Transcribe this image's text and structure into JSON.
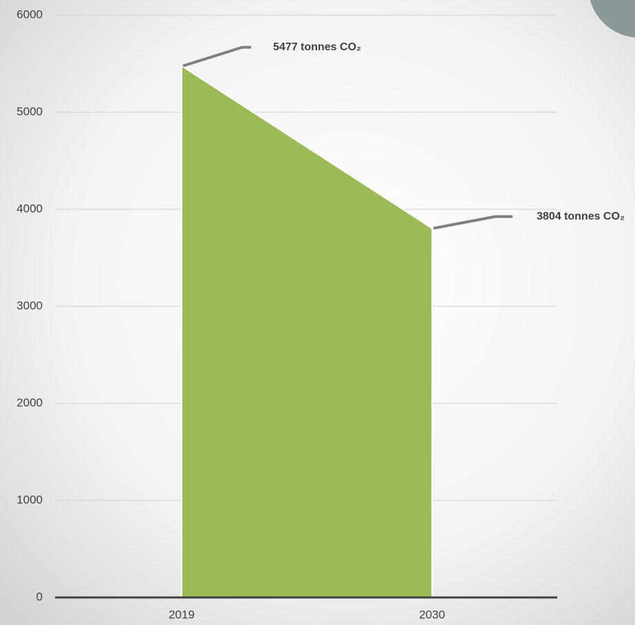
{
  "chart_data": {
    "type": "area",
    "categories": [
      "2019",
      "2030"
    ],
    "values": [
      5477,
      3804
    ],
    "value_labels": [
      "5477 tonnes CO₂",
      "3804 tonnes CO₂"
    ],
    "color": "#9bbb59",
    "ylim": [
      0,
      6000
    ],
    "yticks": [
      0,
      1000,
      2000,
      3000,
      4000,
      5000,
      6000
    ],
    "grid": true
  }
}
